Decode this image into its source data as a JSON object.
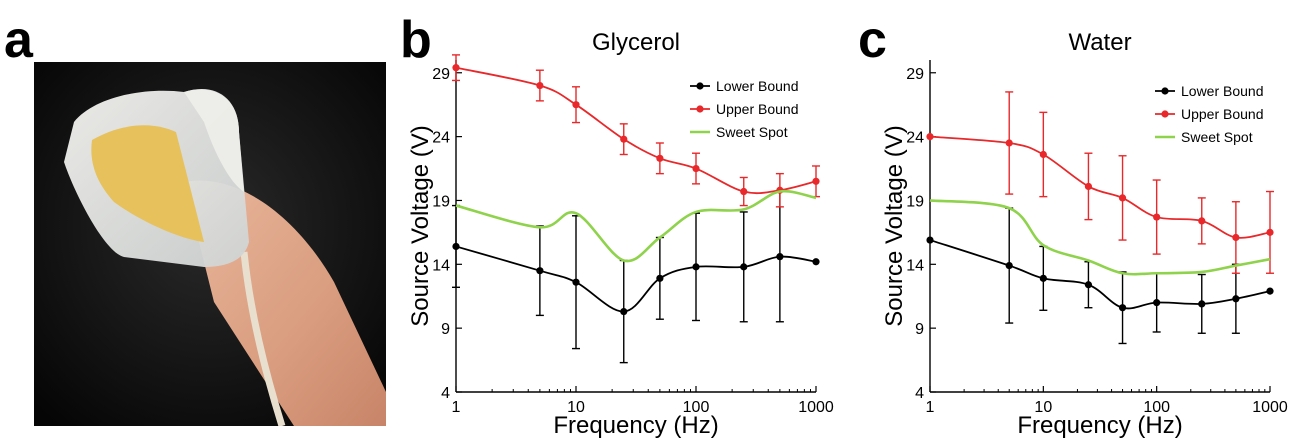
{
  "panels": {
    "a": "a",
    "b": "b",
    "c": "c"
  },
  "colors": {
    "lower": "#000000",
    "upper": "#e8282a",
    "sweet": "#8fd24b"
  },
  "chart_data": [
    {
      "type": "line",
      "title": "Glycerol",
      "xlabel": "Frequency (Hz)",
      "ylabel": "Source Voltage (V)",
      "xscale": "log",
      "xlim": [
        1,
        1000
      ],
      "ylim": [
        4,
        30
      ],
      "yticks": [
        4,
        9,
        14,
        19,
        24,
        29
      ],
      "xticks": [
        1,
        10,
        100,
        1000
      ],
      "legend_position": "top-right",
      "x": [
        1,
        5,
        10,
        25,
        50,
        100,
        250,
        500,
        1000
      ],
      "series": [
        {
          "name": "Lower Bound",
          "color": "#000000",
          "values": [
            15.4,
            13.5,
            12.6,
            10.3,
            12.9,
            13.8,
            13.8,
            14.6,
            14.2
          ],
          "errors": [
            3.2,
            3.5,
            5.2,
            4.0,
            3.2,
            4.2,
            4.3,
            5.1,
            0.0
          ]
        },
        {
          "name": "Upper Bound",
          "color": "#e8282a",
          "values": [
            29.4,
            28.0,
            26.5,
            23.8,
            22.3,
            21.5,
            19.7,
            19.8,
            20.5
          ],
          "errors": [
            1.0,
            1.2,
            1.4,
            1.2,
            1.2,
            1.2,
            1.1,
            1.3,
            1.2
          ]
        },
        {
          "name": "Sweet Spot",
          "color": "#8fd24b",
          "x": [
            1,
            5,
            10,
            25,
            50,
            100,
            250,
            500,
            1000
          ],
          "values": [
            18.6,
            16.9,
            18.0,
            14.3,
            16.1,
            18.1,
            18.3,
            19.7,
            19.2
          ]
        }
      ]
    },
    {
      "type": "line",
      "title": "Water",
      "xlabel": "Frequency (Hz)",
      "ylabel": "Source Voltage (V)",
      "xscale": "log",
      "xlim": [
        1,
        1000
      ],
      "ylim": [
        4,
        30
      ],
      "yticks": [
        4,
        9,
        14,
        19,
        24,
        29
      ],
      "xticks": [
        1,
        10,
        100,
        1000
      ],
      "legend_position": "top-right",
      "x": [
        1,
        5,
        10,
        25,
        50,
        100,
        250,
        500,
        1000
      ],
      "series": [
        {
          "name": "Lower Bound",
          "color": "#000000",
          "values": [
            15.9,
            13.9,
            12.9,
            12.4,
            10.6,
            11.0,
            10.9,
            11.3,
            11.9
          ],
          "errors": [
            0.0,
            4.5,
            2.5,
            1.8,
            2.8,
            2.3,
            2.3,
            2.7,
            0.0
          ]
        },
        {
          "name": "Upper Bound",
          "color": "#e8282a",
          "values": [
            24.0,
            23.5,
            22.6,
            20.1,
            19.2,
            17.7,
            17.4,
            16.1,
            16.5
          ],
          "errors": [
            0.0,
            4.0,
            3.3,
            2.6,
            3.3,
            2.9,
            1.8,
            2.8,
            3.2
          ]
        },
        {
          "name": "Sweet Spot",
          "color": "#8fd24b",
          "values": [
            19.0,
            18.4,
            15.5,
            14.3,
            13.3,
            13.3,
            13.4,
            13.9,
            14.4
          ]
        }
      ]
    }
  ]
}
